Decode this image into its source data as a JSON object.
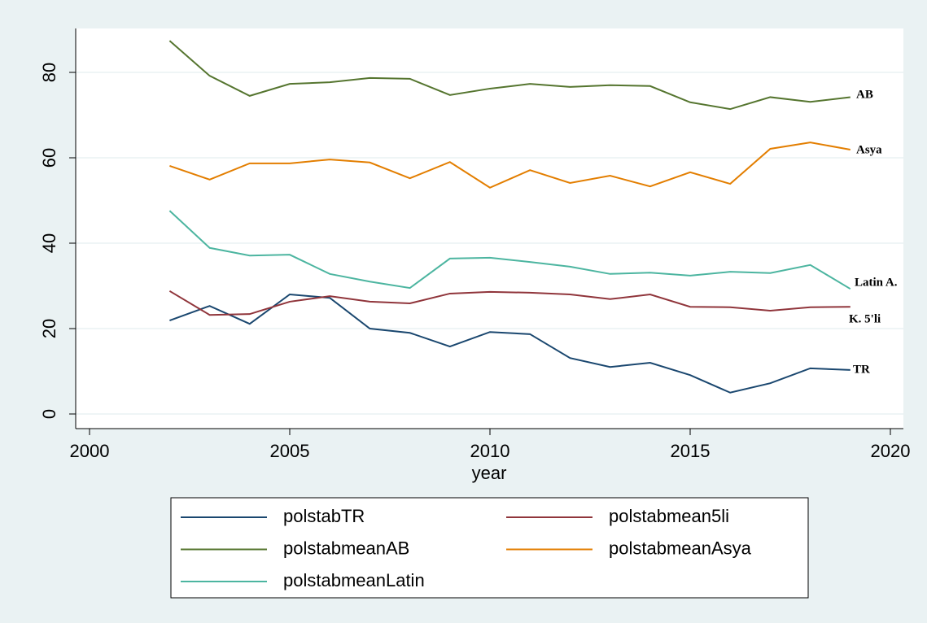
{
  "chart_data": {
    "type": "line",
    "x_label": "year",
    "x": [
      2002,
      2003,
      2004,
      2005,
      2006,
      2007,
      2008,
      2009,
      2010,
      2011,
      2012,
      2013,
      2014,
      2015,
      2016,
      2017,
      2018,
      2019
    ],
    "series": [
      {
        "name": "polstabTR",
        "color": "#1a476f",
        "values": [
          21.9,
          25.3,
          21.1,
          28,
          27.2,
          20,
          19,
          15.8,
          19.2,
          18.7,
          13.1,
          11,
          12,
          9.1,
          5,
          7.2,
          10.7,
          10.3
        ]
      },
      {
        "name": "polstabmean5li",
        "color": "#90353b",
        "values": [
          28.8,
          23.2,
          23.4,
          26.3,
          27.6,
          26.3,
          25.9,
          28.2,
          28.6,
          28.4,
          28,
          26.9,
          28,
          25.1,
          25,
          24.2,
          25,
          25.1
        ]
      },
      {
        "name": "polstabmeanAB",
        "color": "#55752f",
        "values": [
          87.4,
          79.2,
          74.5,
          77.3,
          77.7,
          78.7,
          78.5,
          74.7,
          76.2,
          77.3,
          76.6,
          77,
          76.8,
          73,
          71.4,
          74.2,
          73.1,
          74.2
        ]
      },
      {
        "name": "polstabmeanAsya",
        "color": "#e37e00",
        "values": [
          58.1,
          54.9,
          58.7,
          58.7,
          59.6,
          58.9,
          55.2,
          59,
          53,
          57.1,
          54.1,
          55.8,
          53.3,
          56.6,
          53.9,
          62.1,
          63.6,
          61.9
        ]
      },
      {
        "name": "polstabmeanLatin",
        "color": "#4cb5a0",
        "values": [
          47.6,
          38.9,
          37.1,
          37.3,
          32.8,
          31,
          29.5,
          36.4,
          36.6,
          35.6,
          34.5,
          32.8,
          33.1,
          32.4,
          33.3,
          33,
          34.9,
          29.3
        ]
      }
    ],
    "annotations": [
      "AB",
      "Asya",
      "Latin A.",
      "K. 5'li",
      "TR"
    ],
    "xlim": [
      2000,
      2020
    ],
    "xticks": [
      2000,
      2005,
      2010,
      2015,
      2020
    ],
    "ylim": [
      0,
      80
    ],
    "yticks": [
      0,
      20,
      40,
      60,
      80
    ],
    "grid": true
  }
}
